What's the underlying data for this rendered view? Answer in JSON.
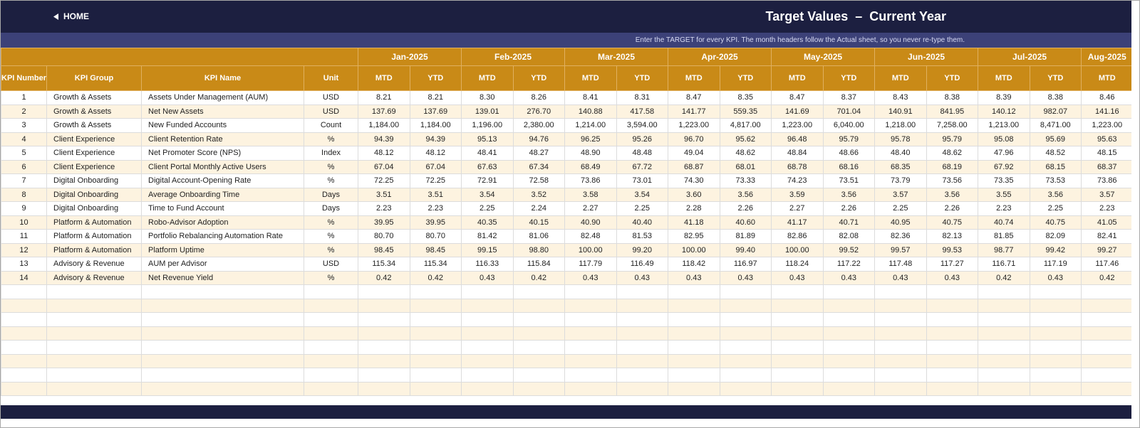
{
  "header": {
    "home": "HOME",
    "title": "Target Values  –  Current Year",
    "subtitle": "Enter the TARGET for every KPI. The month headers follow the Actual sheet, so you never re-type them."
  },
  "table": {
    "columns": [
      "KPI Number",
      "KPI Group",
      "KPI Name",
      "Unit"
    ],
    "months": [
      {
        "name": "Jan-2025",
        "sub": [
          "MTD",
          "YTD"
        ]
      },
      {
        "name": "Feb-2025",
        "sub": [
          "MTD",
          "YTD"
        ]
      },
      {
        "name": "Mar-2025",
        "sub": [
          "MTD",
          "YTD"
        ]
      },
      {
        "name": "Apr-2025",
        "sub": [
          "MTD",
          "YTD"
        ]
      },
      {
        "name": "May-2025",
        "sub": [
          "MTD",
          "YTD"
        ]
      },
      {
        "name": "Jun-2025",
        "sub": [
          "MTD",
          "YTD"
        ]
      },
      {
        "name": "Jul-2025",
        "sub": [
          "MTD",
          "YTD"
        ]
      },
      {
        "name": "Aug-2025",
        "sub": [
          "MTD"
        ]
      }
    ],
    "rows": [
      [
        "1",
        "Growth & Assets",
        "Assets Under Management (AUM)",
        "USD",
        "8.21",
        "8.21",
        "8.30",
        "8.26",
        "8.41",
        "8.31",
        "8.47",
        "8.35",
        "8.47",
        "8.37",
        "8.43",
        "8.38",
        "8.39",
        "8.38",
        "8.46"
      ],
      [
        "2",
        "Growth & Assets",
        "Net New Assets",
        "USD",
        "137.69",
        "137.69",
        "139.01",
        "276.70",
        "140.88",
        "417.58",
        "141.77",
        "559.35",
        "141.69",
        "701.04",
        "140.91",
        "841.95",
        "140.12",
        "982.07",
        "141.16"
      ],
      [
        "3",
        "Growth & Assets",
        "New Funded Accounts",
        "Count",
        "1,184.00",
        "1,184.00",
        "1,196.00",
        "2,380.00",
        "1,214.00",
        "3,594.00",
        "1,223.00",
        "4,817.00",
        "1,223.00",
        "6,040.00",
        "1,218.00",
        "7,258.00",
        "1,213.00",
        "8,471.00",
        "1,223.00"
      ],
      [
        "4",
        "Client Experience",
        "Client Retention Rate",
        "%",
        "94.39",
        "94.39",
        "95.13",
        "94.76",
        "96.25",
        "95.26",
        "96.70",
        "95.62",
        "96.48",
        "95.79",
        "95.78",
        "95.79",
        "95.08",
        "95.69",
        "95.63"
      ],
      [
        "5",
        "Client Experience",
        "Net Promoter Score (NPS)",
        "Index",
        "48.12",
        "48.12",
        "48.41",
        "48.27",
        "48.90",
        "48.48",
        "49.04",
        "48.62",
        "48.84",
        "48.66",
        "48.40",
        "48.62",
        "47.96",
        "48.52",
        "48.15"
      ],
      [
        "6",
        "Client Experience",
        "Client Portal Monthly Active Users",
        "%",
        "67.04",
        "67.04",
        "67.63",
        "67.34",
        "68.49",
        "67.72",
        "68.87",
        "68.01",
        "68.78",
        "68.16",
        "68.35",
        "68.19",
        "67.92",
        "68.15",
        "68.37"
      ],
      [
        "7",
        "Digital Onboarding",
        "Digital Account-Opening Rate",
        "%",
        "72.25",
        "72.25",
        "72.91",
        "72.58",
        "73.86",
        "73.01",
        "74.30",
        "73.33",
        "74.23",
        "73.51",
        "73.79",
        "73.56",
        "73.35",
        "73.53",
        "73.86"
      ],
      [
        "8",
        "Digital Onboarding",
        "Average Onboarding Time",
        "Days",
        "3.51",
        "3.51",
        "3.54",
        "3.52",
        "3.58",
        "3.54",
        "3.60",
        "3.56",
        "3.59",
        "3.56",
        "3.57",
        "3.56",
        "3.55",
        "3.56",
        "3.57"
      ],
      [
        "9",
        "Digital Onboarding",
        "Time to Fund Account",
        "Days",
        "2.23",
        "2.23",
        "2.25",
        "2.24",
        "2.27",
        "2.25",
        "2.28",
        "2.26",
        "2.27",
        "2.26",
        "2.25",
        "2.26",
        "2.23",
        "2.25",
        "2.23"
      ],
      [
        "10",
        "Platform & Automation",
        "Robo-Advisor Adoption",
        "%",
        "39.95",
        "39.95",
        "40.35",
        "40.15",
        "40.90",
        "40.40",
        "41.18",
        "40.60",
        "41.17",
        "40.71",
        "40.95",
        "40.75",
        "40.74",
        "40.75",
        "41.05"
      ],
      [
        "11",
        "Platform & Automation",
        "Portfolio Rebalancing Automation Rate",
        "%",
        "80.70",
        "80.70",
        "81.42",
        "81.06",
        "82.48",
        "81.53",
        "82.95",
        "81.89",
        "82.86",
        "82.08",
        "82.36",
        "82.13",
        "81.85",
        "82.09",
        "82.41"
      ],
      [
        "12",
        "Platform & Automation",
        "Platform Uptime",
        "%",
        "98.45",
        "98.45",
        "99.15",
        "98.80",
        "100.00",
        "99.20",
        "100.00",
        "99.40",
        "100.00",
        "99.52",
        "99.57",
        "99.53",
        "98.77",
        "99.42",
        "99.27"
      ],
      [
        "13",
        "Advisory & Revenue",
        "AUM per Advisor",
        "USD",
        "115.34",
        "115.34",
        "116.33",
        "115.84",
        "117.79",
        "116.49",
        "118.42",
        "116.97",
        "118.24",
        "117.22",
        "117.48",
        "117.27",
        "116.71",
        "117.19",
        "117.46"
      ],
      [
        "14",
        "Advisory & Revenue",
        "Net Revenue Yield",
        "%",
        "0.42",
        "0.42",
        "0.43",
        "0.42",
        "0.43",
        "0.43",
        "0.43",
        "0.43",
        "0.43",
        "0.43",
        "0.43",
        "0.43",
        "0.42",
        "0.43",
        "0.42"
      ]
    ]
  }
}
